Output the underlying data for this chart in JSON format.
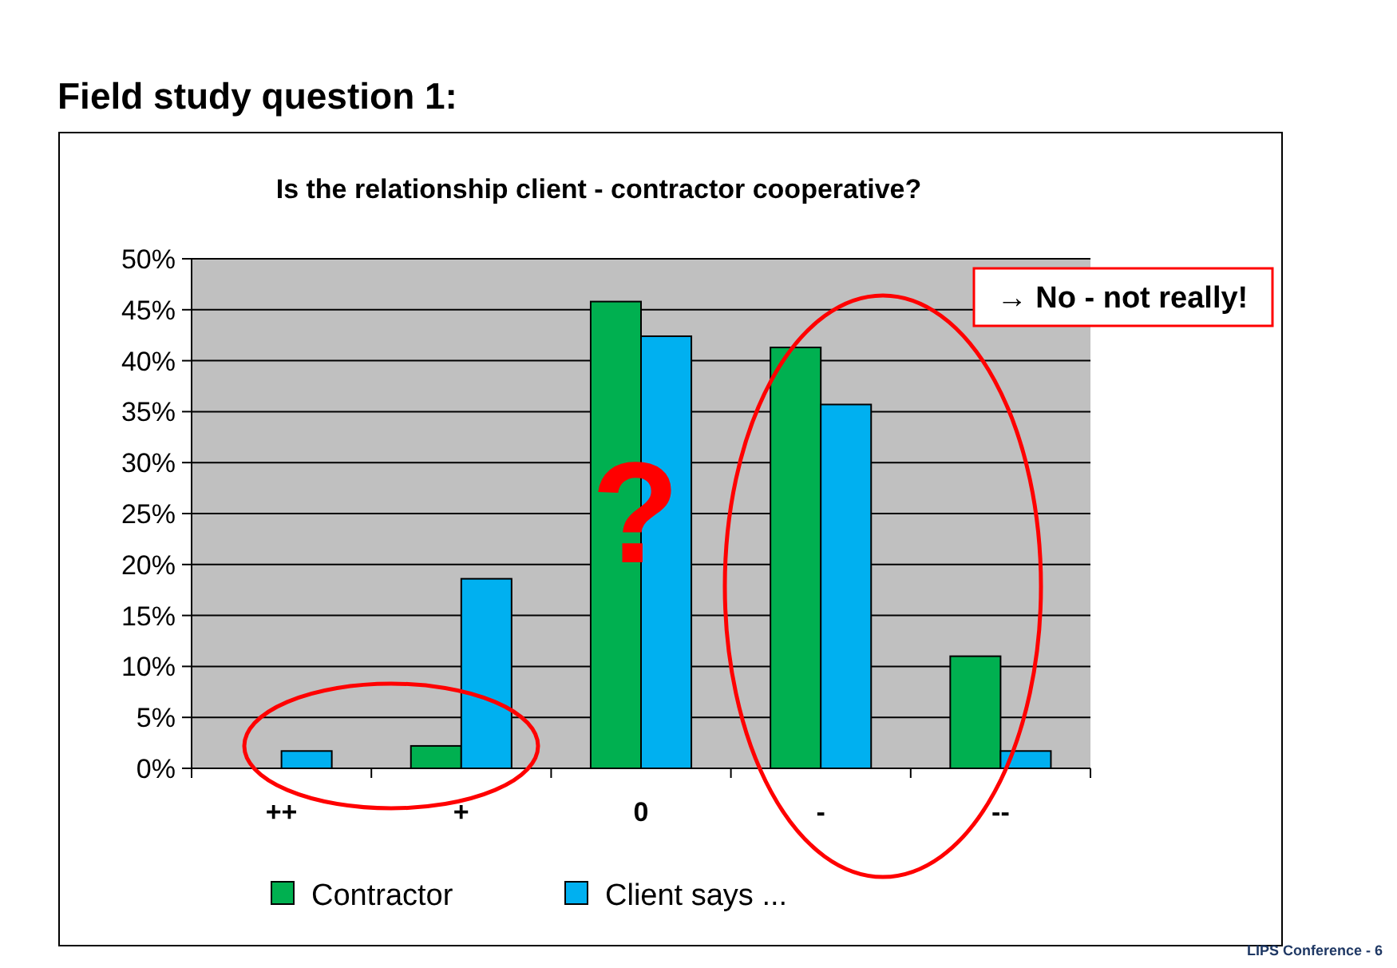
{
  "chart_data": {
    "type": "bar",
    "title": "Field study question 1:",
    "subtitle": "Is the relationship client - contractor cooperative?",
    "categories": [
      "++",
      "+",
      "0",
      "-",
      "--"
    ],
    "series": [
      {
        "name": "Contractor",
        "color": "#00b050",
        "values": [
          0,
          2.2,
          45.8,
          41.3,
          11
        ]
      },
      {
        "name": "Client says ...",
        "color": "#00b0f0",
        "values": [
          1.7,
          18.6,
          42.4,
          35.7,
          1.7
        ]
      }
    ],
    "ylim": [
      0,
      50
    ],
    "yticks": [
      {
        "value": 0,
        "label": "0%"
      },
      {
        "value": 5,
        "label": "5%"
      },
      {
        "value": 10,
        "label": "10%"
      },
      {
        "value": 15,
        "label": "15%"
      },
      {
        "value": 20,
        "label": "20%"
      },
      {
        "value": 25,
        "label": "25%"
      },
      {
        "value": 30,
        "label": "30%"
      },
      {
        "value": 35,
        "label": "35%"
      },
      {
        "value": 40,
        "label": "40%"
      },
      {
        "value": 45,
        "label": "45%"
      },
      {
        "value": 50,
        "label": "50%"
      }
    ],
    "grid": "y",
    "legend": "bottom",
    "annotations": [
      "→ No - not really!",
      "?",
      "LIPS Conference - 6"
    ]
  }
}
